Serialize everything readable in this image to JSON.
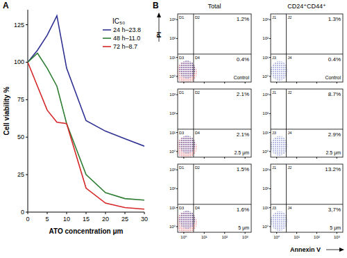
{
  "chart_data": [
    {
      "type": "line",
      "title": "A",
      "xlabel": "ATO concentration μm",
      "ylabel": "Cell viability %",
      "x": [
        0,
        2.5,
        5,
        7.5,
        10,
        15,
        20,
        25,
        30
      ],
      "xlim": [
        0,
        30
      ],
      "xticks": [
        0,
        5,
        10,
        15,
        20,
        25,
        30
      ],
      "ylim": [
        0,
        135
      ],
      "yticks": [
        0,
        25,
        50,
        75,
        100,
        125
      ],
      "legend": "top-right",
      "legend_title": "IC₅₀",
      "grid": false,
      "series": [
        {
          "name": "24 h–23.8",
          "color": "#2e3192",
          "values": [
            100,
            108,
            118,
            131,
            96,
            61,
            54,
            49,
            44
          ]
        },
        {
          "name": "48 h–11.0",
          "color": "#2e7d32",
          "values": [
            100,
            106,
            96,
            84,
            59,
            25,
            13,
            9,
            8
          ]
        },
        {
          "name": "72 h–8.7",
          "color": "#d62728",
          "values": [
            100,
            84,
            68,
            60,
            59,
            16,
            6,
            3,
            2
          ]
        }
      ]
    },
    {
      "type": "quadrant",
      "title": "B",
      "xlabel": "Annexin V",
      "ylabel": "PI",
      "log": true,
      "xlim": [
        0.5,
        2000
      ],
      "ylim": [
        0.5,
        2000
      ],
      "xticks": [
        {
          "value": 1,
          "label": "10⁰"
        },
        {
          "value": 10,
          "label": "10¹"
        },
        {
          "value": 100,
          "label": "10²"
        },
        {
          "value": 1000,
          "label": "10³"
        }
      ],
      "yticks": [
        {
          "value": 1,
          "label": "10⁰"
        },
        {
          "value": 10,
          "label": "10¹"
        },
        {
          "value": 100,
          "label": "10²"
        },
        {
          "value": 1000,
          "label": "10³"
        }
      ],
      "gate": [
        3,
        15
      ],
      "columns": [
        "Total",
        "CD24⁺CD44⁺"
      ],
      "rows": [
        "Control",
        "2.5 μm",
        "5 μm"
      ],
      "quadrant_names": [
        [
          "D1",
          "D2",
          "D3",
          "D4"
        ],
        [
          "J1",
          "J2",
          "J3",
          "J4"
        ]
      ],
      "values": [
        [
          [
            1.2,
            0.4
          ],
          [
            1.3,
            0.4
          ]
        ],
        [
          [
            2.1,
            2.1
          ],
          [
            8.7,
            2.9
          ]
        ],
        [
          [
            1.5,
            1.6
          ],
          [
            13.2,
            3.7
          ]
        ]
      ],
      "value_labels": [
        [
          [
            "1.2%",
            "0.4%"
          ],
          [
            "1.3%",
            "0.4%"
          ]
        ],
        [
          [
            "2.1%",
            "2.1%"
          ],
          [
            "8.7%",
            "2.9%"
          ]
        ],
        [
          [
            "1.5%",
            "1.6%"
          ],
          [
            "13.2%",
            "3,7%"
          ]
        ]
      ]
    }
  ]
}
